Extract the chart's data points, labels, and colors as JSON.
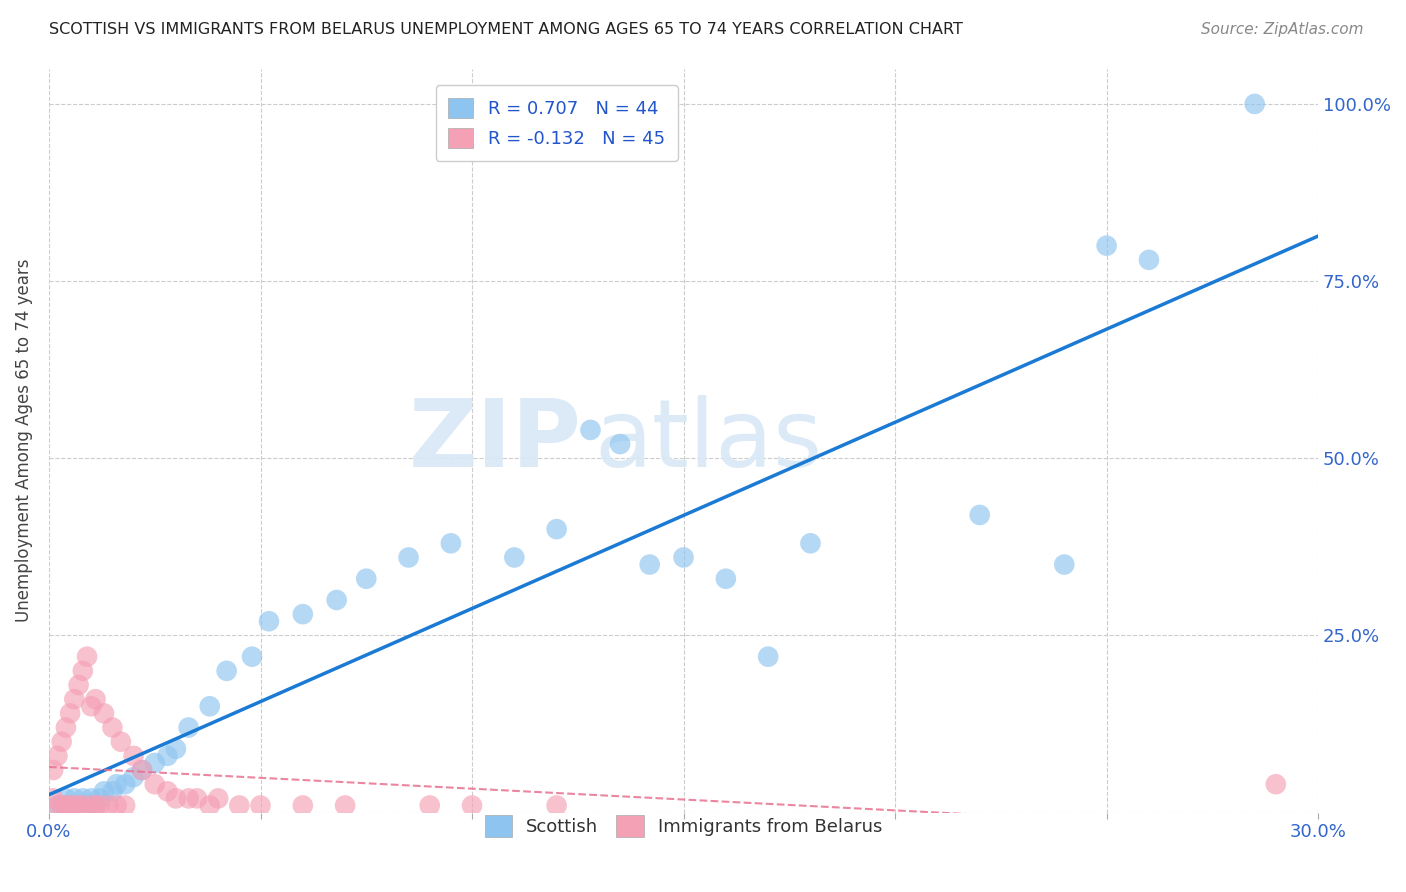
{
  "title": "SCOTTISH VS IMMIGRANTS FROM BELARUS UNEMPLOYMENT AMONG AGES 65 TO 74 YEARS CORRELATION CHART",
  "source": "Source: ZipAtlas.com",
  "ylabel": "Unemployment Among Ages 65 to 74 years",
  "xlim": [
    0.0,
    0.3
  ],
  "ylim": [
    0.0,
    1.05
  ],
  "x_ticks": [
    0.0,
    0.05,
    0.1,
    0.15,
    0.2,
    0.25,
    0.3
  ],
  "x_tick_labels": [
    "0.0%",
    "",
    "",
    "",
    "",
    "",
    "30.0%"
  ],
  "y_ticks": [
    0.0,
    0.25,
    0.5,
    0.75,
    1.0
  ],
  "y_tick_labels": [
    "",
    "25.0%",
    "50.0%",
    "75.0%",
    "100.0%"
  ],
  "blue_color": "#8EC4F0",
  "pink_color": "#F4A0B5",
  "line_blue": "#1A7AD4",
  "line_pink": "#E87090",
  "scottish_x": [
    0.002,
    0.003,
    0.004,
    0.005,
    0.006,
    0.007,
    0.008,
    0.009,
    0.01,
    0.011,
    0.012,
    0.013,
    0.015,
    0.016,
    0.018,
    0.02,
    0.022,
    0.025,
    0.028,
    0.03,
    0.033,
    0.038,
    0.042,
    0.048,
    0.052,
    0.06,
    0.068,
    0.075,
    0.085,
    0.095,
    0.11,
    0.12,
    0.128,
    0.135,
    0.142,
    0.15,
    0.16,
    0.17,
    0.18,
    0.22,
    0.24,
    0.25,
    0.26,
    0.285
  ],
  "scottish_y": [
    0.01,
    0.01,
    0.02,
    0.01,
    0.02,
    0.01,
    0.02,
    0.01,
    0.02,
    0.01,
    0.02,
    0.03,
    0.03,
    0.04,
    0.04,
    0.05,
    0.06,
    0.07,
    0.08,
    0.09,
    0.12,
    0.15,
    0.2,
    0.22,
    0.27,
    0.28,
    0.3,
    0.33,
    0.36,
    0.38,
    0.36,
    0.4,
    0.54,
    0.52,
    0.35,
    0.36,
    0.33,
    0.22,
    0.38,
    0.42,
    0.35,
    0.8,
    0.78,
    1.0
  ],
  "belarus_x": [
    0.001,
    0.001,
    0.002,
    0.002,
    0.003,
    0.003,
    0.004,
    0.004,
    0.005,
    0.005,
    0.006,
    0.006,
    0.007,
    0.007,
    0.008,
    0.008,
    0.009,
    0.01,
    0.01,
    0.011,
    0.011,
    0.012,
    0.013,
    0.014,
    0.015,
    0.016,
    0.017,
    0.018,
    0.02,
    0.022,
    0.025,
    0.028,
    0.03,
    0.033,
    0.035,
    0.038,
    0.04,
    0.045,
    0.05,
    0.06,
    0.07,
    0.09,
    0.1,
    0.12,
    0.29
  ],
  "belarus_y": [
    0.02,
    0.06,
    0.01,
    0.08,
    0.01,
    0.1,
    0.01,
    0.12,
    0.01,
    0.14,
    0.01,
    0.16,
    0.01,
    0.18,
    0.01,
    0.2,
    0.22,
    0.01,
    0.15,
    0.01,
    0.16,
    0.01,
    0.14,
    0.01,
    0.12,
    0.01,
    0.1,
    0.01,
    0.08,
    0.06,
    0.04,
    0.03,
    0.02,
    0.02,
    0.02,
    0.01,
    0.02,
    0.01,
    0.01,
    0.01,
    0.01,
    0.01,
    0.01,
    0.01,
    0.04
  ],
  "watermark_zip": "ZIP",
  "watermark_atlas": "atlas",
  "background_color": "#FFFFFF"
}
